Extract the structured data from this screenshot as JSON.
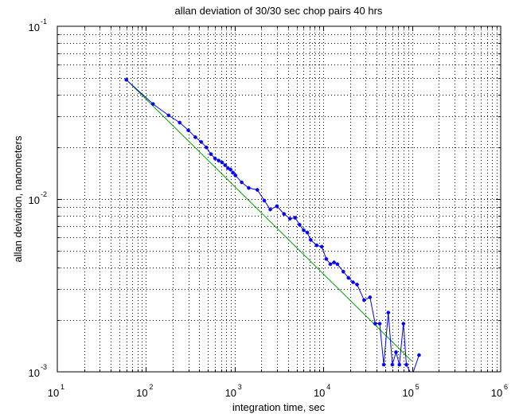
{
  "chart_data": {
    "type": "line",
    "title": "allan deviation of 30/30 sec chop pairs 40 hrs",
    "xlabel": "integration time, sec",
    "ylabel": "allan deviation, nanometers",
    "xscale": "log",
    "yscale": "log",
    "xlim": [
      10,
      1000000
    ],
    "ylim": [
      0.001,
      0.1
    ],
    "grid": true,
    "x_ticks": [
      {
        "base": "10",
        "exp": "1",
        "value": 10
      },
      {
        "base": "10",
        "exp": "2",
        "value": 100
      },
      {
        "base": "10",
        "exp": "3",
        "value": 1000
      },
      {
        "base": "10",
        "exp": "4",
        "value": 10000
      },
      {
        "base": "10",
        "exp": "5",
        "value": 100000
      },
      {
        "base": "10",
        "exp": "6",
        "value": 1000000
      }
    ],
    "y_ticks": [
      {
        "base": "10",
        "exp": "-3",
        "value": 0.001
      },
      {
        "base": "10",
        "exp": "-2",
        "value": 0.01
      },
      {
        "base": "10",
        "exp": "-1",
        "value": 0.1
      }
    ],
    "colors": {
      "measured": "#0000ff",
      "fit": "#00a000",
      "grid": "#000000",
      "axes": "#000000"
    },
    "series": [
      {
        "style": "line-markers",
        "x": [
          60,
          120,
          180,
          240,
          300,
          360,
          420,
          480,
          540,
          600,
          660,
          720,
          780,
          840,
          900,
          960,
          1020,
          1200,
          1440,
          1800,
          2160,
          2520,
          3000,
          3600,
          4200,
          4800,
          5400,
          6000,
          6600,
          7200,
          8400,
          9600,
          10800,
          12000,
          13200,
          14400,
          16800,
          19200,
          21600,
          24000,
          28800,
          33600,
          38400,
          43200,
          48000,
          54000,
          60000,
          66000,
          72000,
          80000,
          86400,
          100000,
          120000
        ],
        "values": [
          0.049,
          0.0355,
          0.0305,
          0.0277,
          0.025,
          0.0228,
          0.0214,
          0.0199,
          0.0182,
          0.0172,
          0.0167,
          0.0163,
          0.0157,
          0.0151,
          0.0148,
          0.0142,
          0.0137,
          0.0125,
          0.0116,
          0.0113,
          0.0098,
          0.0087,
          0.0091,
          0.0082,
          0.0077,
          0.0078,
          0.0071,
          0.0066,
          0.0064,
          0.0058,
          0.0054,
          0.0053,
          0.0045,
          0.0042,
          0.0043,
          0.0042,
          0.0038,
          0.0035,
          0.0033,
          0.0032,
          0.0026,
          0.0027,
          0.0019,
          0.0019,
          0.0011,
          0.0022,
          0.0011,
          0.0013,
          0.0011,
          0.0019,
          0.0011,
          0.00095,
          0.00125
        ]
      },
      {
        "style": "line",
        "x": [
          60,
          100000
        ],
        "values": [
          0.049,
          0.00115
        ]
      }
    ]
  }
}
